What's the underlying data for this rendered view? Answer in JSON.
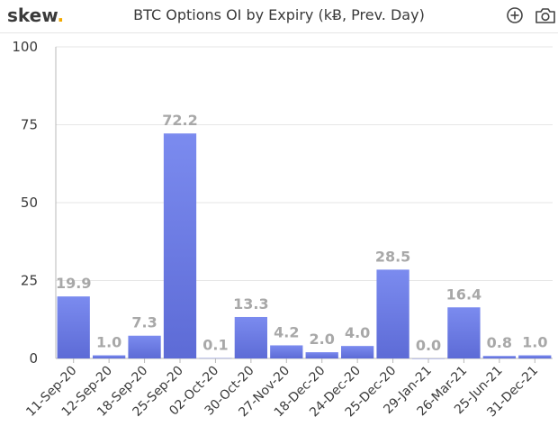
{
  "header": {
    "logo_text": "skew",
    "logo_dot": ".",
    "title": "BTC Options OI by Expiry (kɃ, Prev. Day)",
    "zoom_icon": "zoom-in-icon",
    "camera_icon": "camera-icon"
  },
  "colors": {
    "bar_top": "#7b8bef",
    "bar_bottom": "#5d6bd6",
    "logo_dot": "#f2a900",
    "data_label": "#a8a8a8"
  },
  "chart_data": {
    "type": "bar",
    "categories": [
      "11-Sep-20",
      "12-Sep-20",
      "18-Sep-20",
      "25-Sep-20",
      "02-Oct-20",
      "30-Oct-20",
      "27-Nov-20",
      "18-Dec-20",
      "24-Dec-20",
      "25-Dec-20",
      "29-Jan-21",
      "26-Mar-21",
      "25-Jun-21",
      "31-Dec-21"
    ],
    "values": [
      19.9,
      1.0,
      7.3,
      72.2,
      0.1,
      13.3,
      4.2,
      2.0,
      4.0,
      28.5,
      0.0,
      16.4,
      0.8,
      1.0
    ],
    "labels": [
      "19.9",
      "1.0",
      "7.3",
      "72.2",
      "0.1",
      "13.3",
      "4.2",
      "2.0",
      "4.0",
      "28.5",
      "0.0",
      "16.4",
      "0.8",
      "1.0"
    ],
    "title": "BTC Options OI by Expiry (kɃ, Prev. Day)",
    "xlabel": "",
    "ylabel": "",
    "ylim": [
      0,
      100
    ],
    "yticks": [
      0,
      25,
      50,
      75,
      100
    ],
    "ytick_labels": [
      "0",
      "25",
      "50",
      "75",
      "100"
    ],
    "grid": "horizontal",
    "legend": "none"
  }
}
